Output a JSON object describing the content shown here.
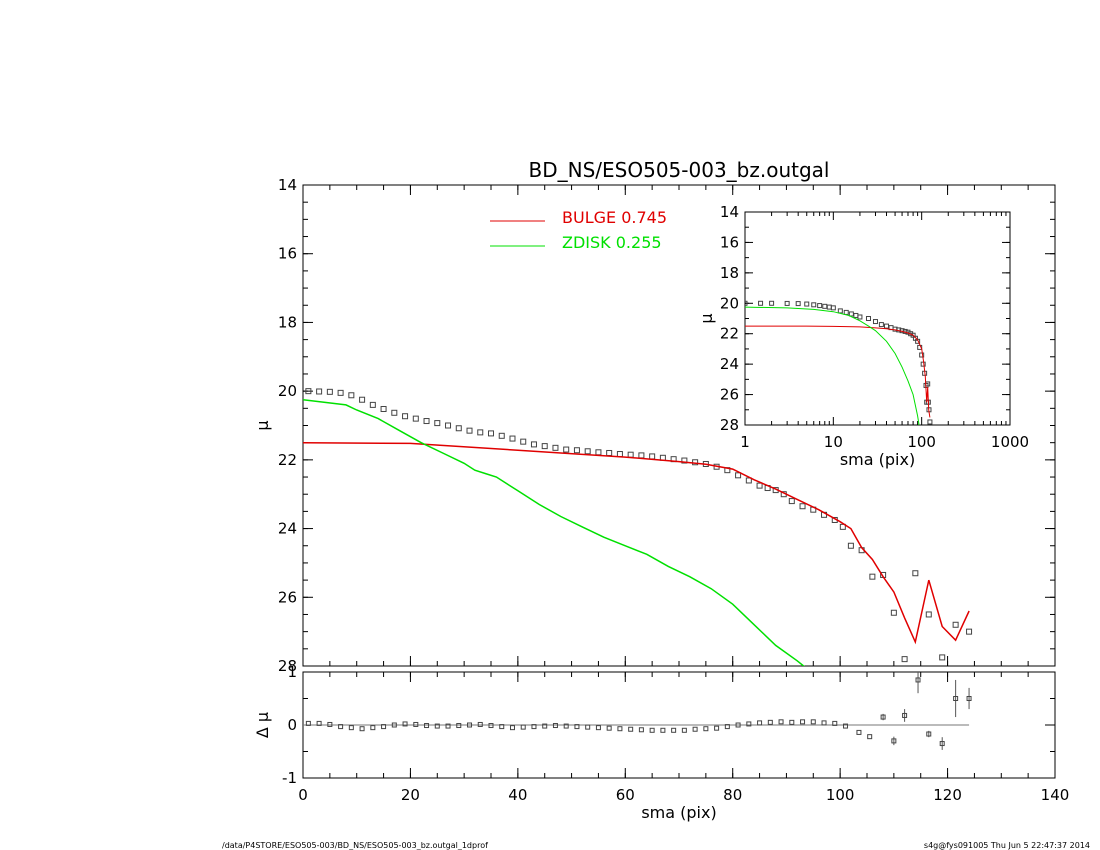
{
  "title": "BD_NS/ESO505-003_bz.outgal",
  "footer_left": "/data/P4STORE/ESO505-003/BD_NS/ESO505-003_bz.outgal_1dprof",
  "footer_right": "s4g@fys091005  Thu Jun  5 22:47:37 2014",
  "colors": {
    "bulge": "#e00000",
    "zdisk": "#00e000",
    "data": "#555555"
  },
  "chart_data": [
    {
      "id": "main",
      "type": "line",
      "xlabel": "",
      "ylabel": "μ",
      "xlim": [
        0,
        140
      ],
      "ylim": [
        28,
        14
      ],
      "y_inverted": true,
      "xticks": [
        0,
        20,
        40,
        60,
        80,
        100,
        120,
        140
      ],
      "yticks": [
        14,
        16,
        18,
        20,
        22,
        24,
        26,
        28
      ],
      "legend": {
        "placement": "top-center",
        "entries": [
          {
            "name": "BULGE",
            "value": "0.745",
            "color": "#e00000"
          },
          {
            "name": "ZDISK",
            "value": "0.255",
            "color": "#00e000"
          }
        ]
      },
      "series": [
        {
          "name": "data",
          "style": "open-squares",
          "x": [
            1,
            3,
            5,
            7,
            9,
            11,
            13,
            15,
            17,
            19,
            21,
            23,
            25,
            27,
            29,
            31,
            33,
            35,
            37,
            39,
            41,
            43,
            45,
            47,
            49,
            51,
            53,
            55,
            57,
            59,
            61,
            63,
            65,
            67,
            69,
            71,
            73,
            75,
            77,
            79,
            81,
            83,
            85,
            86.5,
            88,
            89.5,
            91,
            93,
            95,
            97,
            99,
            100.5,
            102,
            104,
            106,
            108,
            110,
            112,
            114,
            116.5,
            119,
            121.5,
            124
          ],
          "y": [
            20.0,
            20.01,
            20.02,
            20.05,
            20.12,
            20.25,
            20.4,
            20.52,
            20.63,
            20.73,
            20.8,
            20.87,
            20.93,
            21.0,
            21.08,
            21.15,
            21.2,
            21.23,
            21.3,
            21.38,
            21.47,
            21.55,
            21.6,
            21.65,
            21.7,
            21.72,
            21.75,
            21.78,
            21.8,
            21.83,
            21.85,
            21.87,
            21.9,
            21.94,
            21.98,
            22.02,
            22.07,
            22.12,
            22.2,
            22.3,
            22.45,
            22.6,
            22.75,
            22.82,
            22.88,
            23.0,
            23.2,
            23.35,
            23.45,
            23.6,
            23.75,
            23.95,
            24.5,
            24.63,
            25.4,
            25.35,
            26.45,
            27.8,
            25.3,
            26.5,
            27.75,
            26.8,
            27.0
          ]
        },
        {
          "name": "BULGE",
          "style": "line",
          "color": "#e00000",
          "x": [
            0,
            20,
            40,
            60,
            70,
            75,
            80,
            84,
            88,
            92,
            96,
            100,
            102,
            104,
            106,
            108,
            110,
            112,
            114,
            116.5,
            119,
            121.5,
            124
          ],
          "y": [
            21.5,
            21.52,
            21.72,
            21.92,
            22.05,
            22.13,
            22.27,
            22.58,
            22.85,
            23.15,
            23.45,
            23.8,
            24.0,
            24.55,
            24.9,
            25.4,
            25.85,
            26.6,
            27.3,
            25.5,
            26.85,
            27.25,
            26.4
          ]
        },
        {
          "name": "ZDISK",
          "style": "line",
          "color": "#00e000",
          "x": [
            0,
            8,
            10,
            14,
            18,
            22,
            26,
            30,
            32,
            34,
            36,
            38,
            40,
            44,
            48,
            52,
            56,
            60,
            64,
            68,
            72,
            76,
            80,
            84,
            88,
            92,
            94
          ],
          "y": [
            20.25,
            20.4,
            20.55,
            20.8,
            21.15,
            21.5,
            21.8,
            22.1,
            22.3,
            22.4,
            22.5,
            22.7,
            22.9,
            23.3,
            23.65,
            23.95,
            24.25,
            24.5,
            24.75,
            25.1,
            25.4,
            25.75,
            26.2,
            26.8,
            27.4,
            27.85,
            28.1
          ]
        }
      ]
    },
    {
      "id": "residual",
      "type": "scatter",
      "xlabel": "sma (pix)",
      "ylabel": "Δ μ",
      "xlim": [
        0,
        140
      ],
      "ylim": [
        -1,
        1
      ],
      "xticks": [
        0,
        20,
        40,
        60,
        80,
        100,
        120,
        140
      ],
      "yticks": [
        -1,
        0,
        1
      ],
      "zero_line": true,
      "series": [
        {
          "name": "residual",
          "style": "open-squares-with-errorbars",
          "x": [
            1,
            3,
            5,
            7,
            9,
            11,
            13,
            15,
            17,
            19,
            21,
            23,
            25,
            27,
            29,
            31,
            33,
            35,
            37,
            39,
            41,
            43,
            45,
            47,
            49,
            51,
            53,
            55,
            57,
            59,
            61,
            63,
            65,
            67,
            69,
            71,
            73,
            75,
            77,
            79,
            81,
            83,
            85,
            87,
            89,
            91,
            93,
            95,
            97,
            99,
            101,
            103.5,
            105.5,
            108,
            110,
            112,
            114.5,
            116.5,
            119,
            121.5,
            124
          ],
          "y": [
            0.03,
            0.03,
            0.01,
            -0.03,
            -0.05,
            -0.07,
            -0.05,
            -0.03,
            0.0,
            0.02,
            0.01,
            -0.01,
            -0.02,
            -0.02,
            -0.01,
            0.0,
            0.01,
            -0.01,
            -0.03,
            -0.05,
            -0.04,
            -0.03,
            -0.02,
            -0.01,
            -0.02,
            -0.03,
            -0.04,
            -0.05,
            -0.06,
            -0.07,
            -0.08,
            -0.09,
            -0.1,
            -0.1,
            -0.1,
            -0.1,
            -0.08,
            -0.07,
            -0.06,
            -0.03,
            0.0,
            0.02,
            0.04,
            0.05,
            0.06,
            0.05,
            0.06,
            0.06,
            0.04,
            0.03,
            -0.02,
            -0.14,
            -0.22,
            0.15,
            -0.3,
            0.18,
            0.85,
            -0.17,
            -0.35,
            0.5,
            0.5
          ],
          "err": [
            0,
            0,
            0,
            0,
            0,
            0,
            0,
            0,
            0,
            0,
            0,
            0,
            0,
            0,
            0,
            0,
            0,
            0,
            0,
            0,
            0,
            0,
            0,
            0,
            0,
            0,
            0,
            0,
            0,
            0,
            0,
            0,
            0,
            0,
            0,
            0,
            0,
            0,
            0,
            0,
            0,
            0,
            0,
            0,
            0,
            0,
            0,
            0,
            0,
            0,
            0,
            0,
            0,
            0.06,
            0.08,
            0.12,
            0.25,
            0.06,
            0.12,
            0.35,
            0.2
          ]
        }
      ]
    },
    {
      "id": "inset",
      "type": "line",
      "xlabel": "sma (pix)",
      "ylabel": "μ",
      "x_scale": "log",
      "xlim": [
        1,
        1000
      ],
      "ylim": [
        28,
        14
      ],
      "y_inverted": true,
      "xticks": [
        1,
        10,
        100,
        1000
      ],
      "yticks": [
        14,
        16,
        18,
        20,
        22,
        24,
        26,
        28
      ],
      "series": [
        {
          "name": "data",
          "style": "open-squares",
          "x": [
            1,
            1.5,
            2,
            3,
            4,
            5,
            6,
            7,
            8,
            9,
            10,
            12,
            14,
            16,
            18,
            20,
            25,
            30,
            35,
            40,
            45,
            50,
            55,
            60,
            65,
            70,
            75,
            80,
            85,
            90,
            95,
            100,
            104,
            108,
            112,
            114,
            117,
            119,
            121,
            124
          ],
          "y": [
            20.0,
            20.0,
            20.0,
            20.01,
            20.02,
            20.05,
            20.1,
            20.15,
            20.2,
            20.25,
            20.3,
            20.5,
            20.6,
            20.7,
            20.8,
            20.9,
            21.0,
            21.2,
            21.4,
            21.5,
            21.6,
            21.7,
            21.75,
            21.8,
            21.85,
            21.9,
            22.0,
            22.1,
            22.3,
            22.5,
            22.9,
            23.4,
            24.0,
            24.6,
            25.4,
            26.5,
            25.3,
            26.5,
            27.0,
            27.8
          ]
        },
        {
          "name": "BULGE",
          "style": "line",
          "color": "#e00000",
          "x": [
            1,
            5,
            10,
            20,
            30,
            40,
            50,
            60,
            70,
            80,
            90,
            100,
            105,
            110,
            114,
            117,
            120,
            124
          ],
          "y": [
            21.5,
            21.5,
            21.52,
            21.55,
            21.62,
            21.68,
            21.75,
            21.85,
            21.95,
            22.1,
            22.4,
            23.0,
            23.8,
            24.8,
            26.5,
            25.5,
            27.0,
            27.5
          ]
        },
        {
          "name": "ZDISK",
          "style": "line",
          "color": "#00e000",
          "x": [
            1,
            3,
            6,
            10,
            15,
            20,
            25,
            30,
            40,
            50,
            60,
            70,
            80,
            90,
            94
          ],
          "y": [
            20.25,
            20.3,
            20.4,
            20.55,
            20.8,
            21.15,
            21.5,
            21.8,
            22.5,
            23.3,
            24.2,
            25.1,
            26.0,
            27.4,
            28.1
          ]
        }
      ]
    }
  ]
}
